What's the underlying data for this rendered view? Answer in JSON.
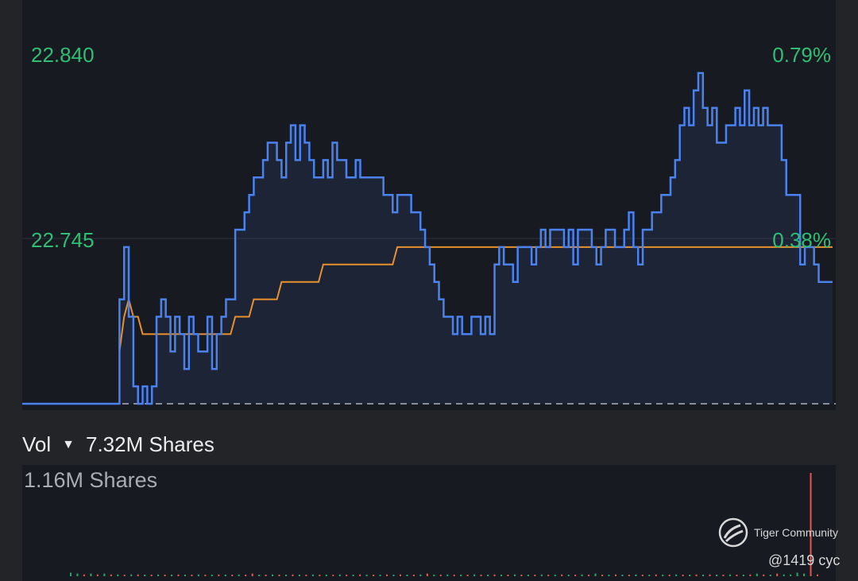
{
  "chart_data": {
    "type": "line",
    "price_axis": {
      "high_label": "22.840",
      "mid_label": "22.745"
    },
    "pct_axis": {
      "high_label": "0.79%",
      "mid_label": "0.38%"
    },
    "ylim": [
      22.65,
      22.85
    ],
    "series": [
      {
        "role": "price",
        "color": "#4a82f0",
        "values": [
          22.65,
          22.65,
          22.65,
          22.65,
          22.65,
          22.65,
          22.65,
          22.65,
          22.65,
          22.65,
          22.65,
          22.65,
          22.65,
          22.65,
          22.65,
          22.65,
          22.65,
          22.65,
          22.65,
          22.65,
          22.65,
          22.71,
          22.74,
          22.7,
          22.66,
          22.65,
          22.66,
          22.65,
          22.66,
          22.7,
          22.71,
          22.7,
          22.68,
          22.7,
          22.69,
          22.67,
          22.7,
          22.69,
          22.68,
          22.68,
          22.7,
          22.67,
          22.69,
          22.7,
          22.71,
          22.71,
          22.75,
          22.75,
          22.76,
          22.77,
          22.78,
          22.78,
          22.79,
          22.8,
          22.8,
          22.79,
          22.78,
          22.8,
          22.81,
          22.79,
          22.81,
          22.8,
          22.79,
          22.78,
          22.78,
          22.79,
          22.78,
          22.8,
          22.79,
          22.79,
          22.78,
          22.78,
          22.79,
          22.78,
          22.78,
          22.78,
          22.78,
          22.78,
          22.77,
          22.77,
          22.76,
          22.77,
          22.77,
          22.77,
          22.76,
          22.76,
          22.75,
          22.74,
          22.73,
          22.72,
          22.71,
          22.7,
          22.7,
          22.69,
          22.7,
          22.69,
          22.69,
          22.7,
          22.7,
          22.69,
          22.7,
          22.69,
          22.73,
          22.74,
          22.73,
          22.73,
          22.72,
          22.74,
          22.74,
          22.74,
          22.73,
          22.74,
          22.75,
          22.74,
          22.75,
          22.75,
          22.75,
          22.74,
          22.75,
          22.73,
          22.75,
          22.75,
          22.75,
          22.74,
          22.73,
          22.74,
          22.75,
          22.75,
          22.74,
          22.74,
          22.75,
          22.76,
          22.74,
          22.73,
          22.75,
          22.75,
          22.76,
          22.76,
          22.77,
          22.77,
          22.78,
          22.79,
          22.81,
          22.82,
          22.81,
          22.83,
          22.84,
          22.82,
          22.81,
          22.82,
          22.8,
          22.8,
          22.81,
          22.81,
          22.82,
          22.81,
          22.83,
          22.81,
          22.82,
          22.81,
          22.82,
          22.81,
          22.81,
          22.81,
          22.79,
          22.77,
          22.77,
          22.77,
          22.73,
          22.74,
          22.74,
          22.73,
          22.72,
          22.72,
          22.72,
          22.72
        ]
      },
      {
        "role": "average",
        "color": "#e8912c",
        "values": [
          null,
          null,
          null,
          null,
          null,
          null,
          null,
          null,
          null,
          null,
          null,
          null,
          null,
          null,
          null,
          null,
          null,
          null,
          null,
          null,
          null,
          22.68,
          22.7,
          22.71,
          22.7,
          22.7,
          22.69,
          22.69,
          22.69,
          22.69,
          22.69,
          22.69,
          22.69,
          22.69,
          22.69,
          22.69,
          22.69,
          22.69,
          22.69,
          22.69,
          22.69,
          22.69,
          22.69,
          22.69,
          22.69,
          22.69,
          22.7,
          22.7,
          22.7,
          22.7,
          22.71,
          22.71,
          22.71,
          22.71,
          22.71,
          22.71,
          22.72,
          22.72,
          22.72,
          22.72,
          22.72,
          22.72,
          22.72,
          22.72,
          22.72,
          22.73,
          22.73,
          22.73,
          22.73,
          22.73,
          22.73,
          22.73,
          22.73,
          22.73,
          22.73,
          22.73,
          22.73,
          22.73,
          22.73,
          22.73,
          22.73,
          22.74,
          22.74,
          22.74,
          22.74,
          22.74,
          22.74,
          22.74,
          22.74,
          22.74,
          22.74,
          22.74,
          22.74,
          22.74,
          22.74,
          22.74,
          22.74,
          22.74,
          22.74,
          22.74,
          22.74,
          22.74,
          22.74,
          22.74,
          22.74,
          22.74,
          22.74,
          22.74,
          22.74,
          22.74,
          22.74,
          22.74,
          22.74,
          22.74,
          22.74,
          22.74,
          22.74,
          22.74,
          22.74,
          22.74,
          22.74,
          22.74,
          22.74,
          22.74,
          22.74,
          22.74,
          22.74,
          22.74,
          22.74,
          22.74,
          22.74,
          22.74,
          22.74,
          22.74,
          22.74,
          22.74,
          22.74,
          22.74,
          22.74,
          22.74,
          22.74,
          22.74,
          22.74,
          22.74,
          22.74,
          22.74,
          22.74,
          22.74,
          22.74,
          22.74,
          22.74,
          22.74,
          22.74,
          22.74,
          22.74,
          22.74,
          22.74,
          22.74,
          22.74,
          22.74,
          22.74,
          22.74,
          22.74,
          22.74,
          22.74,
          22.74,
          22.74,
          22.74,
          22.74,
          22.74,
          22.74,
          22.74,
          22.74,
          22.74,
          22.74,
          22.74,
          22.74,
          22.74,
          22.74
        ]
      }
    ],
    "volume": {
      "label": "Vol",
      "total": "7.32M Shares",
      "max_label": "1.16M Shares",
      "max": 1.16,
      "up_color": "#25a86a",
      "down_color": "#e2584c",
      "bars": [
        0.04,
        0.03,
        0.02,
        0.03,
        0.02,
        0.03,
        0.02,
        0.02,
        0.01,
        0.02,
        0.02,
        0.01,
        0.01,
        0.02,
        0.01,
        0.01,
        0.02,
        0.01,
        0.01,
        0.02,
        0.01,
        0.01,
        0.02,
        0.01,
        0.01,
        0.02,
        0.01,
        0.03,
        0.01,
        0.01,
        0.02,
        0.01,
        0.01,
        0.02,
        0.01,
        0.01,
        0.02,
        0.01,
        0.01,
        0.01,
        0.02,
        0.01,
        0.01,
        0.02,
        0.01,
        0.01,
        0.01,
        0.02,
        0.01,
        0.02,
        0.01,
        0.01,
        0.02,
        0.03,
        0.01,
        0.01,
        0.02,
        0.01,
        0.01,
        0.01,
        0.02,
        0.01,
        0.01,
        0.02,
        0.01,
        0.01,
        0.02,
        0.01,
        0.01,
        0.01,
        0.02,
        0.01,
        0.01,
        0.02,
        0.01,
        0.01,
        0.02,
        0.01,
        0.03,
        0.01,
        0.01,
        0.02,
        0.01,
        0.01,
        0.02,
        0.01,
        0.01,
        0.02,
        0.01,
        0.01,
        0.02,
        0.01,
        0.01,
        0.02,
        0.01,
        0.02,
        0.01,
        0.01,
        0.02,
        0.01,
        0.01,
        0.02,
        0.03,
        0.02,
        0.01,
        0.03,
        0.02,
        0.02,
        0.04,
        0.03,
        1.16,
        0.02
      ],
      "bar_dirs": [
        "u",
        "u",
        "d",
        "u",
        "d",
        "u",
        "d",
        "u",
        "d",
        "u",
        "d",
        "u",
        "d",
        "u",
        "d",
        "u",
        "d",
        "u",
        "d",
        "u",
        "d",
        "u",
        "d",
        "u",
        "d",
        "u",
        "d",
        "d",
        "u",
        "d",
        "u",
        "d",
        "u",
        "d",
        "u",
        "d",
        "u",
        "d",
        "u",
        "d",
        "u",
        "d",
        "u",
        "d",
        "u",
        "d",
        "u",
        "d",
        "u",
        "d",
        "u",
        "d",
        "u",
        "d",
        "u",
        "d",
        "u",
        "d",
        "u",
        "d",
        "u",
        "d",
        "u",
        "d",
        "u",
        "d",
        "u",
        "d",
        "u",
        "d",
        "u",
        "d",
        "u",
        "d",
        "u",
        "d",
        "u",
        "d",
        "u",
        "d",
        "u",
        "d",
        "u",
        "d",
        "u",
        "d",
        "u",
        "d",
        "u",
        "d",
        "u",
        "d",
        "u",
        "d",
        "u",
        "d",
        "u",
        "d",
        "u",
        "d",
        "u",
        "d",
        "u",
        "d",
        "u",
        "d",
        "u",
        "u",
        "u",
        "u",
        "d",
        "d"
      ]
    }
  },
  "watermark": {
    "brand": "Tiger Community",
    "user": "@1419 cyc"
  },
  "colors": {
    "background": "#232428",
    "panel": "#181a22",
    "axis_text": "#2fbe73",
    "midline": "#2d3038",
    "baseline": "#8a8d99"
  }
}
